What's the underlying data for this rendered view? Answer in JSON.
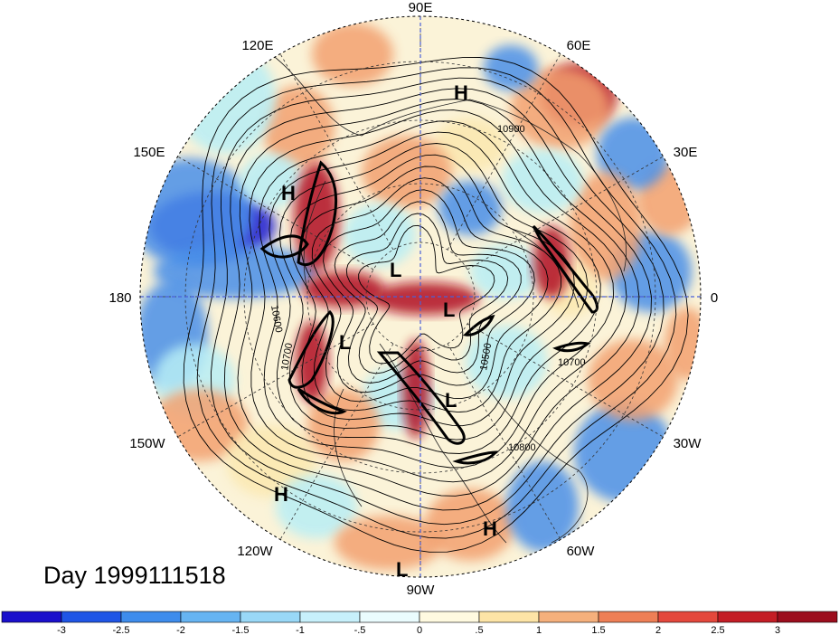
{
  "map": {
    "title": "Day 1999111518",
    "longitude_labels": [
      {
        "text": "90E",
        "angle": 90
      },
      {
        "text": "60E",
        "angle": 60
      },
      {
        "text": "30E",
        "angle": 30
      },
      {
        "text": "0",
        "angle": 0
      },
      {
        "text": "30W",
        "angle": -30
      },
      {
        "text": "60W",
        "angle": -60
      },
      {
        "text": "90W",
        "angle": -90
      },
      {
        "text": "120W",
        "angle": -120
      },
      {
        "text": "150W",
        "angle": -150
      },
      {
        "text": "180",
        "angle": 180
      },
      {
        "text": "150E",
        "angle": 150
      },
      {
        "text": "120E",
        "angle": 120
      }
    ],
    "pressure_centers": [
      {
        "label": "H",
        "name": "high-ne-asia"
      },
      {
        "label": "H",
        "name": "high-w-pacific"
      },
      {
        "label": "H",
        "name": "high-e-pacific"
      },
      {
        "label": "H",
        "name": "high-s-atlantic"
      },
      {
        "label": "L",
        "name": "low-siberia"
      },
      {
        "label": "L",
        "name": "low-arctic"
      },
      {
        "label": "L",
        "name": "low-alaska"
      },
      {
        "label": "L",
        "name": "low-hudson"
      },
      {
        "label": "L",
        "name": "low-tropical"
      }
    ],
    "contour_labels": [
      "10900",
      "10600",
      "10700",
      "10500",
      "10700",
      "10800"
    ],
    "colors": {
      "strong_negative": "#1a1ad0",
      "negative": "#4a8fe8",
      "weak_negative": "#b8eef5",
      "neutral": "#ffffff",
      "weak_positive": "#fbe8b0",
      "positive": "#f2a070",
      "strong_positive": "#b01020"
    }
  },
  "colorbar": {
    "tick_labels": [
      "-3",
      "-2.5",
      "-2",
      "-1.5",
      "-1",
      "-.5",
      "0",
      ".5",
      "1",
      "1.5",
      "2",
      "2.5",
      "3"
    ],
    "colors": [
      "#1a0fcc",
      "#1f55e6",
      "#3e8cec",
      "#66b4f2",
      "#99d8f7",
      "#c7f0fb",
      "#eafcfe",
      "#fffae0",
      "#fde4a6",
      "#f5b07c",
      "#ee7f56",
      "#e4483c",
      "#c41d25",
      "#9c0d1d"
    ]
  }
}
